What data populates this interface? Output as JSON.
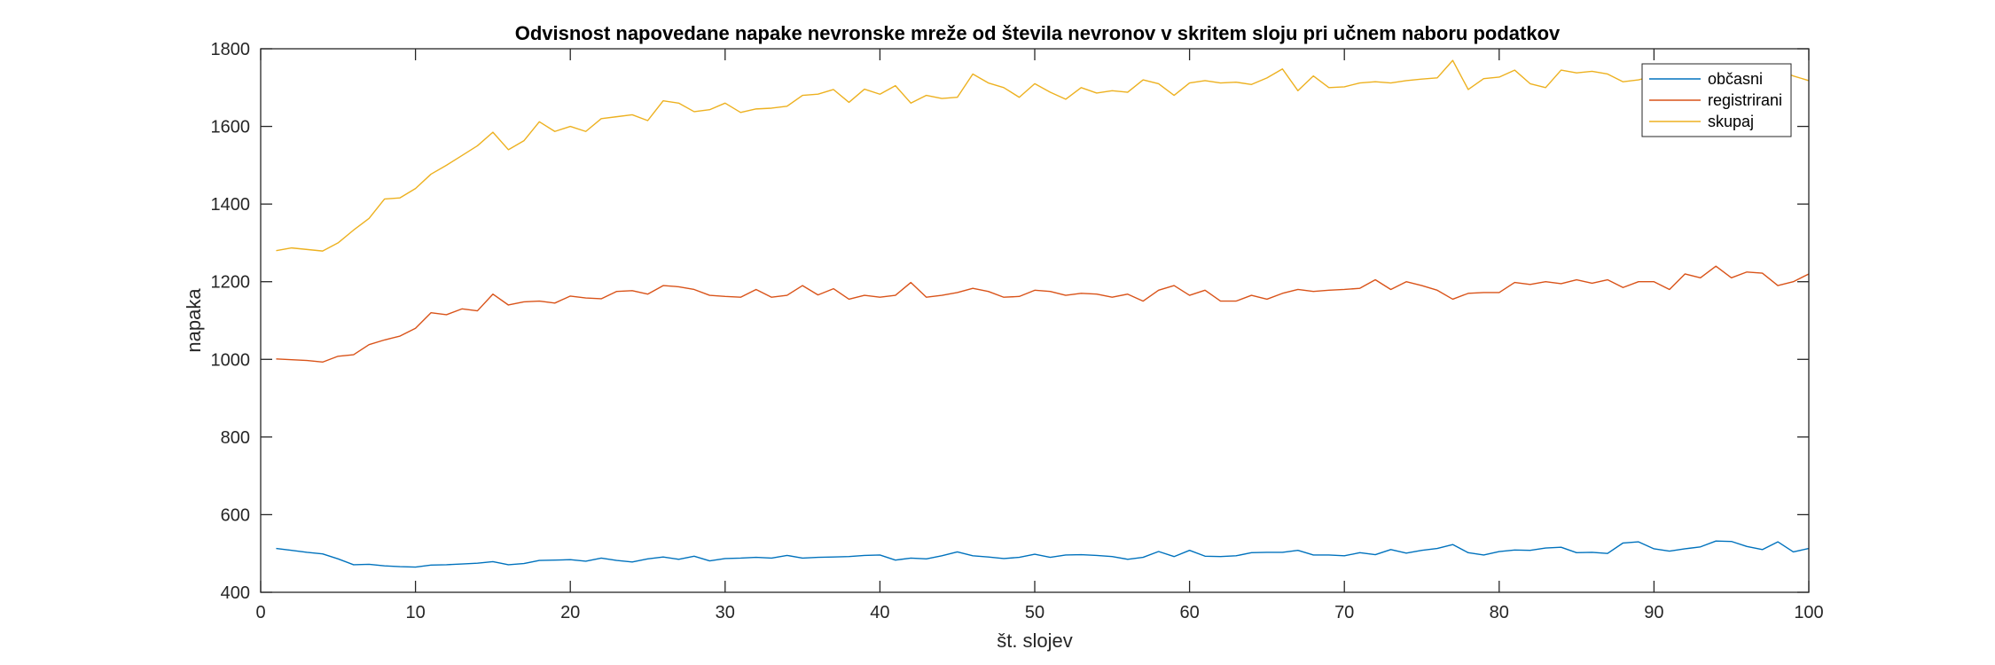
{
  "chart_data": {
    "type": "line",
    "title": "Odvisnost napovedane napake nevronske mreže od števila nevronov v skritem sloju pri učnem naboru podatkov",
    "xlabel": "št. slojev",
    "ylabel": "napaka",
    "xlim": [
      0,
      100
    ],
    "ylim": [
      400,
      1800
    ],
    "xticks": [
      0,
      10,
      20,
      30,
      40,
      50,
      60,
      70,
      80,
      90,
      100
    ],
    "yticks": [
      400,
      600,
      800,
      1000,
      1200,
      1400,
      1600,
      1800
    ],
    "grid": false,
    "legend_position": "top-right",
    "x": [
      1,
      2,
      3,
      4,
      5,
      6,
      7,
      8,
      9,
      10,
      11,
      12,
      13,
      14,
      15,
      16,
      17,
      18,
      19,
      20,
      21,
      22,
      23,
      24,
      25,
      26,
      27,
      28,
      29,
      30,
      31,
      32,
      33,
      34,
      35,
      36,
      37,
      38,
      39,
      40,
      41,
      42,
      43,
      44,
      45,
      46,
      47,
      48,
      49,
      50,
      51,
      52,
      53,
      54,
      55,
      56,
      57,
      58,
      59,
      60,
      61,
      62,
      63,
      64,
      65,
      66,
      67,
      68,
      69,
      70,
      71,
      72,
      73,
      74,
      75,
      76,
      77,
      78,
      79,
      80,
      81,
      82,
      83,
      84,
      85,
      86,
      87,
      88,
      89,
      90,
      91,
      92,
      93,
      94,
      95,
      96,
      97,
      98,
      99,
      100
    ],
    "series": [
      {
        "name": "občasni",
        "color": "#0072BD",
        "values": [
          513,
          508,
          503,
          499,
          486,
          471,
          472,
          468,
          466,
          465,
          470,
          471,
          473,
          475,
          479,
          471,
          474,
          482,
          483,
          484,
          480,
          488,
          482,
          478,
          486,
          491,
          485,
          493,
          481,
          487,
          488,
          490,
          488,
          495,
          488,
          490,
          491,
          492,
          495,
          496,
          483,
          488,
          486,
          494,
          504,
          494,
          491,
          487,
          490,
          498,
          490,
          496,
          497,
          495,
          492,
          485,
          490,
          505,
          492,
          508,
          493,
          492,
          494,
          502,
          503,
          503,
          508,
          496,
          496,
          494,
          502,
          497,
          510,
          501,
          508,
          513,
          523,
          502,
          496,
          505,
          509,
          508,
          514,
          516,
          502,
          503,
          500,
          527,
          530,
          512,
          506,
          512,
          517,
          532,
          531,
          518,
          510,
          530,
          504,
          513
        ]
      },
      {
        "name": "registrirani",
        "color": "#D95319",
        "values": [
          1001,
          999,
          997,
          993,
          1008,
          1012,
          1038,
          1050,
          1060,
          1080,
          1120,
          1115,
          1130,
          1125,
          1168,
          1140,
          1148,
          1150,
          1145,
          1163,
          1158,
          1156,
          1175,
          1177,
          1168,
          1190,
          1187,
          1180,
          1165,
          1162,
          1160,
          1180,
          1160,
          1165,
          1190,
          1166,
          1182,
          1155,
          1165,
          1160,
          1165,
          1198,
          1160,
          1165,
          1172,
          1183,
          1175,
          1160,
          1162,
          1178,
          1175,
          1165,
          1170,
          1168,
          1160,
          1168,
          1150,
          1178,
          1190,
          1165,
          1178,
          1150,
          1150,
          1165,
          1155,
          1170,
          1180,
          1175,
          1178,
          1180,
          1183,
          1205,
          1180,
          1200,
          1190,
          1178,
          1155,
          1170,
          1172,
          1172,
          1198,
          1193,
          1200,
          1195,
          1205,
          1196,
          1205,
          1185,
          1200,
          1200,
          1180,
          1220,
          1210,
          1240,
          1210,
          1225,
          1222,
          1190,
          1200,
          1220
        ]
      },
      {
        "name": "skupaj",
        "color": "#EDB120",
        "values": [
          1280,
          1287,
          1283,
          1279,
          1300,
          1333,
          1363,
          1413,
          1416,
          1440,
          1477,
          1500,
          1525,
          1550,
          1585,
          1540,
          1563,
          1612,
          1587,
          1600,
          1587,
          1620,
          1625,
          1630,
          1615,
          1666,
          1660,
          1638,
          1643,
          1660,
          1636,
          1645,
          1647,
          1652,
          1680,
          1683,
          1695,
          1662,
          1696,
          1683,
          1705,
          1660,
          1680,
          1672,
          1675,
          1735,
          1712,
          1700,
          1675,
          1710,
          1688,
          1670,
          1700,
          1686,
          1692,
          1688,
          1720,
          1710,
          1680,
          1712,
          1718,
          1712,
          1714,
          1708,
          1725,
          1748,
          1692,
          1730,
          1700,
          1702,
          1712,
          1715,
          1712,
          1718,
          1722,
          1725,
          1770,
          1695,
          1723,
          1727,
          1745,
          1710,
          1700,
          1745,
          1738,
          1742,
          1735,
          1715,
          1720,
          1730,
          1735,
          1743,
          1740,
          1730,
          1728,
          1732,
          1740,
          1745,
          1730,
          1718
        ]
      }
    ]
  }
}
